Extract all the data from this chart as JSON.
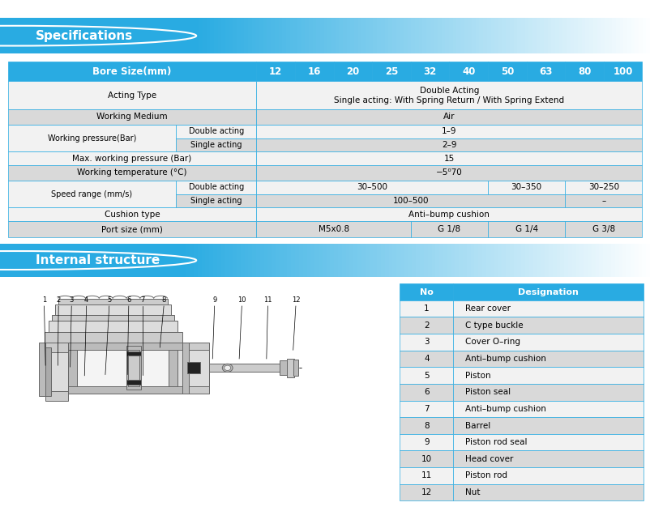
{
  "title1": "Specifications",
  "title2": "Internal structure",
  "header_bg": "#29ABE2",
  "row_bg_dark": "#D9D9D9",
  "row_bg_light": "#F2F2F2",
  "bore_sizes": [
    "12",
    "16",
    "20",
    "25",
    "32",
    "40",
    "50",
    "63",
    "80",
    "100"
  ],
  "parts": [
    {
      "no": "1",
      "name": "Rear cover",
      "bg": "light"
    },
    {
      "no": "2",
      "name": "C type buckle",
      "bg": "dark"
    },
    {
      "no": "3",
      "name": "Cover O–ring",
      "bg": "light"
    },
    {
      "no": "4",
      "name": "Anti–bump cushion",
      "bg": "dark"
    },
    {
      "no": "5",
      "name": "Piston",
      "bg": "light"
    },
    {
      "no": "6",
      "name": "Piston seal",
      "bg": "dark"
    },
    {
      "no": "7",
      "name": "Anti–bump cushion",
      "bg": "light"
    },
    {
      "no": "8",
      "name": "Barrel",
      "bg": "dark"
    },
    {
      "no": "9",
      "name": "Piston rod seal",
      "bg": "light"
    },
    {
      "no": "10",
      "name": "Head cover",
      "bg": "dark"
    },
    {
      "no": "11",
      "name": "Piston rod",
      "bg": "light"
    },
    {
      "no": "12",
      "name": "Nut",
      "bg": "dark"
    }
  ]
}
